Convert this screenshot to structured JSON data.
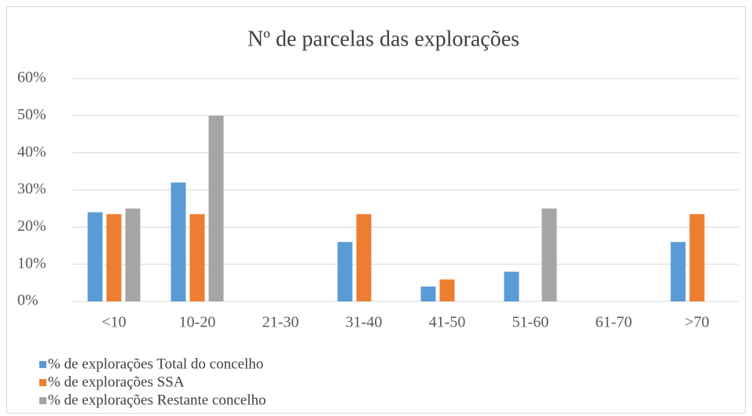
{
  "chart_data": {
    "type": "bar",
    "title": "Nº de parcelas das explorações",
    "categories": [
      "<10",
      "10-20",
      "21-30",
      "31-40",
      "41-50",
      "51-60",
      "61-70",
      ">70"
    ],
    "series": [
      {
        "name": "% de explorações Total do concelho",
        "color": "#5b9bd5",
        "values": [
          24,
          32,
          0,
          16,
          4,
          8,
          0,
          16
        ]
      },
      {
        "name": "% de explorações SSA",
        "color": "#ed7d31",
        "values": [
          23.5,
          23.5,
          0,
          23.5,
          5.9,
          0,
          0,
          23.5
        ]
      },
      {
        "name": "% de explorações Restante concelho",
        "color": "#a5a5a5",
        "values": [
          25,
          50,
          0,
          0,
          0,
          25,
          0,
          0
        ]
      }
    ],
    "ylim": [
      0,
      60
    ],
    "yticks": [
      {
        "value": 0,
        "label": "0%"
      },
      {
        "value": 10,
        "label": "10%"
      },
      {
        "value": 20,
        "label": "20%"
      },
      {
        "value": 30,
        "label": "30%"
      },
      {
        "value": 40,
        "label": "40%"
      },
      {
        "value": 50,
        "label": "50%"
      },
      {
        "value": 60,
        "label": "60%"
      }
    ],
    "grid": true
  }
}
